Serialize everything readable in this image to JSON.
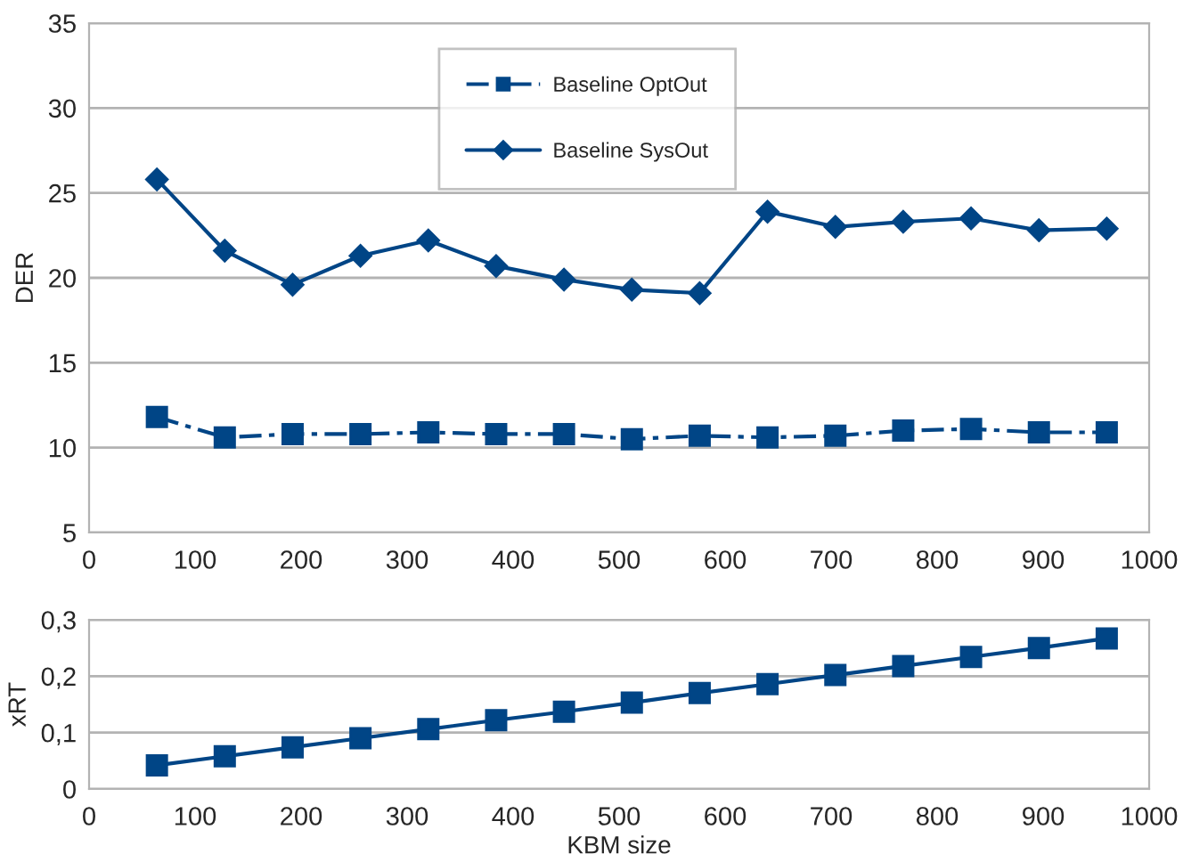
{
  "chart_data": [
    {
      "type": "line",
      "ylabel": "DER",
      "xlim": [
        0,
        1000
      ],
      "xticks": [
        0,
        100,
        200,
        300,
        400,
        500,
        600,
        700,
        800,
        900,
        1000
      ],
      "ylim": [
        5,
        35
      ],
      "yticks": [
        5,
        10,
        15,
        20,
        25,
        30,
        35
      ],
      "grid": "y",
      "legend": "top",
      "x": [
        64,
        128,
        192,
        256,
        320,
        384,
        448,
        512,
        576,
        640,
        704,
        768,
        832,
        896,
        960
      ],
      "series": [
        {
          "name": "Baseline OptOut",
          "color": "#004586",
          "marker": "square",
          "line_style": "dashed",
          "values": [
            11.8,
            10.6,
            10.8,
            10.8,
            10.9,
            10.8,
            10.8,
            10.5,
            10.7,
            10.6,
            10.7,
            11.0,
            11.1,
            10.9,
            10.9
          ]
        },
        {
          "name": "Baseline SysOut",
          "color": "#004586",
          "marker": "diamond",
          "line_style": "solid",
          "values": [
            25.8,
            21.6,
            19.6,
            21.3,
            22.2,
            20.7,
            19.9,
            19.3,
            19.1,
            23.9,
            23.0,
            23.3,
            23.5,
            22.8,
            22.9
          ]
        }
      ]
    },
    {
      "type": "line",
      "ylabel": "xRT",
      "xlabel": "KBM size",
      "xlim": [
        0,
        1000
      ],
      "xticks": [
        0,
        100,
        200,
        300,
        400,
        500,
        600,
        700,
        800,
        900,
        1000
      ],
      "ylim": [
        0,
        0.3
      ],
      "yticks": [
        0,
        {
          "value": 0.1,
          "label": "0,1"
        },
        {
          "value": 0.2,
          "label": "0,2"
        },
        {
          "value": 0.3,
          "label": "0,3"
        }
      ],
      "grid": "y",
      "x": [
        64,
        128,
        192,
        256,
        320,
        384,
        448,
        512,
        576,
        640,
        704,
        768,
        832,
        896,
        960
      ],
      "series": [
        {
          "color": "#004586",
          "marker": "square",
          "line_style": "solid",
          "values": [
            0.042,
            0.058,
            0.074,
            0.09,
            0.106,
            0.122,
            0.137,
            0.153,
            0.17,
            0.186,
            0.202,
            0.218,
            0.234,
            0.25,
            0.267
          ]
        }
      ]
    }
  ]
}
